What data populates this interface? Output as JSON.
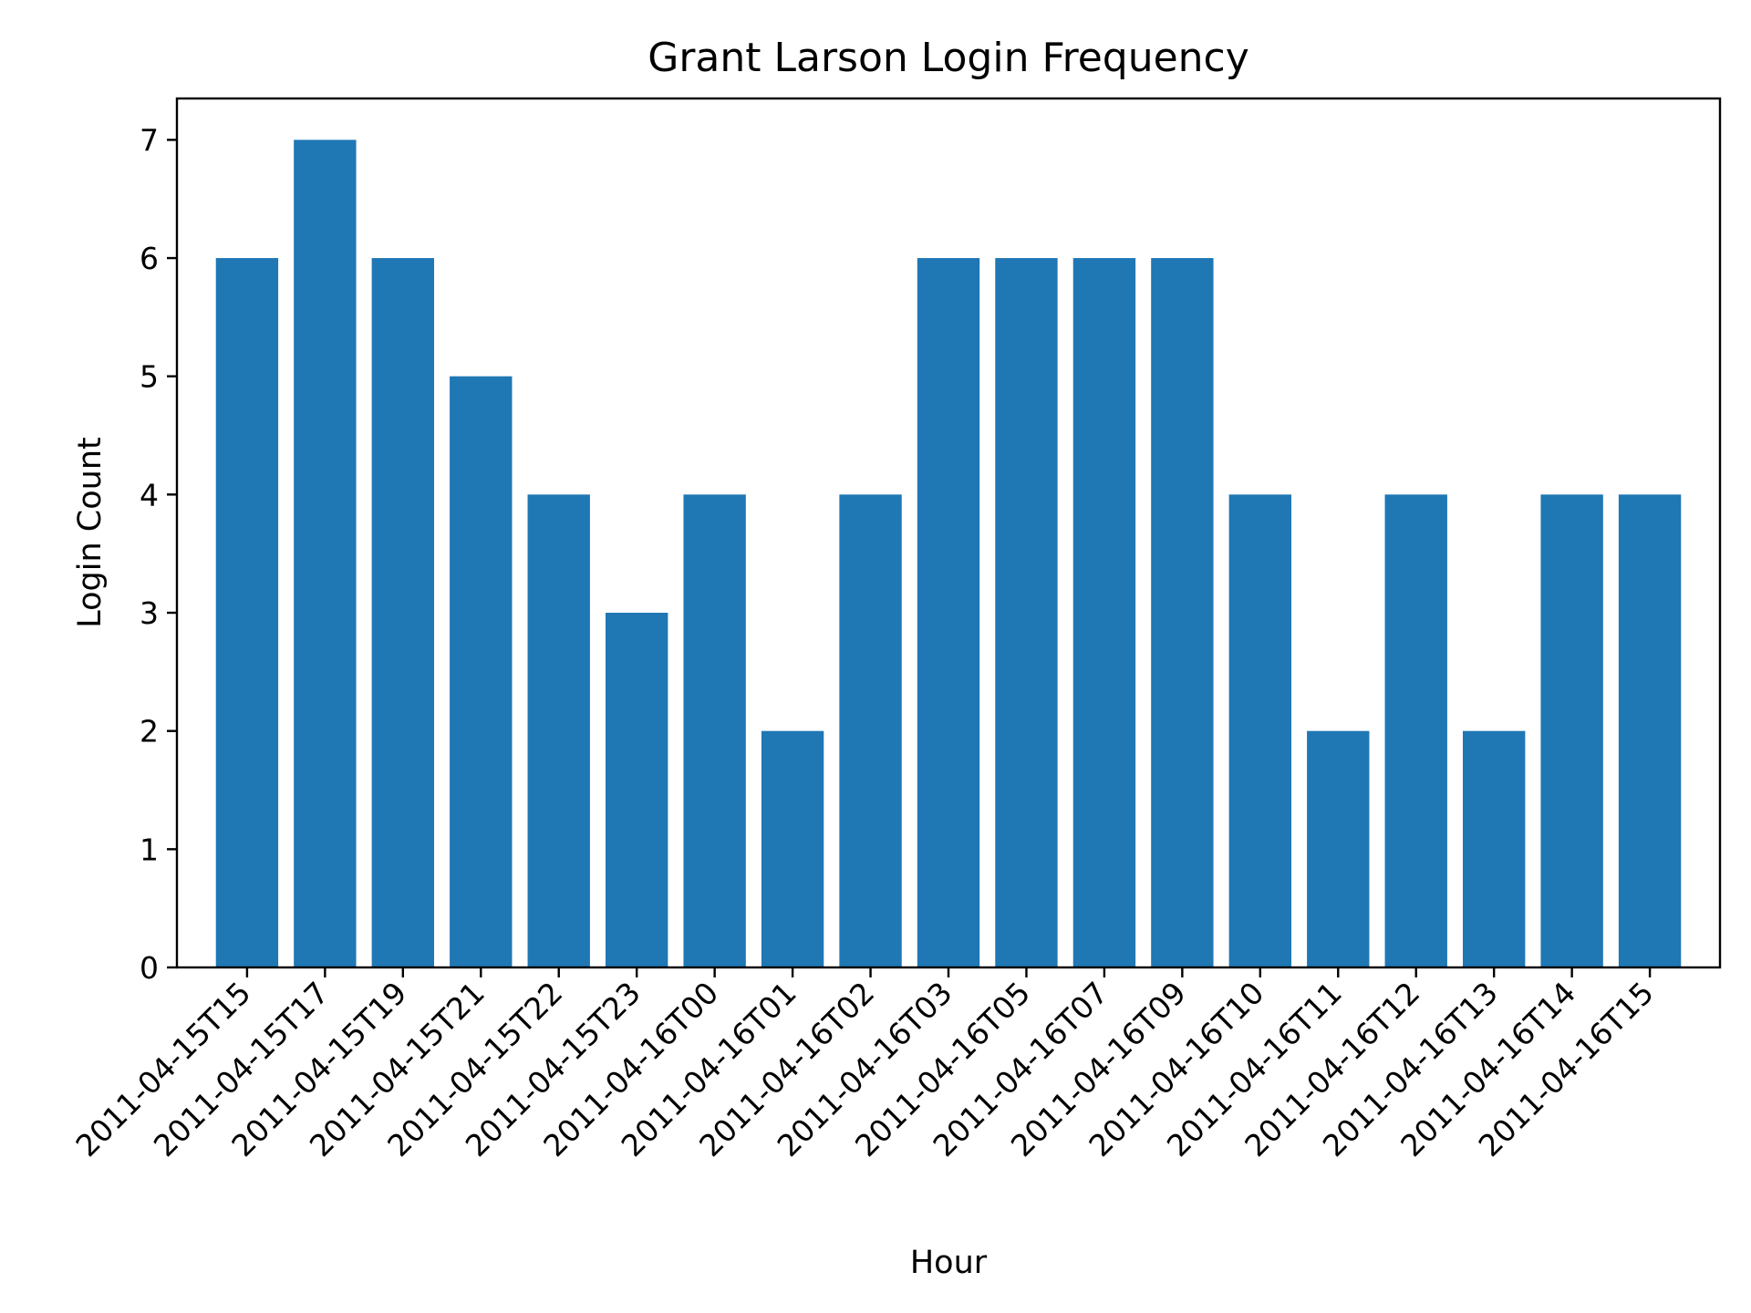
{
  "chart_data": {
    "type": "bar",
    "title": "Grant Larson Login Frequency",
    "xlabel": "Hour",
    "ylabel": "Login Count",
    "categories": [
      "2011-04-15T15",
      "2011-04-15T17",
      "2011-04-15T19",
      "2011-04-15T21",
      "2011-04-15T22",
      "2011-04-15T23",
      "2011-04-16T00",
      "2011-04-16T01",
      "2011-04-16T02",
      "2011-04-16T03",
      "2011-04-16T05",
      "2011-04-16T07",
      "2011-04-16T09",
      "2011-04-16T10",
      "2011-04-16T11",
      "2011-04-16T12",
      "2011-04-16T13",
      "2011-04-16T14",
      "2011-04-16T15"
    ],
    "values": [
      6,
      7,
      6,
      5,
      4,
      3,
      4,
      2,
      4,
      6,
      6,
      6,
      6,
      4,
      2,
      4,
      2,
      4,
      4
    ],
    "ylim": [
      0,
      7.35
    ],
    "yticks": [
      0,
      1,
      2,
      3,
      4,
      5,
      6,
      7
    ],
    "grid": false,
    "bar_color": "#1f77b4"
  }
}
